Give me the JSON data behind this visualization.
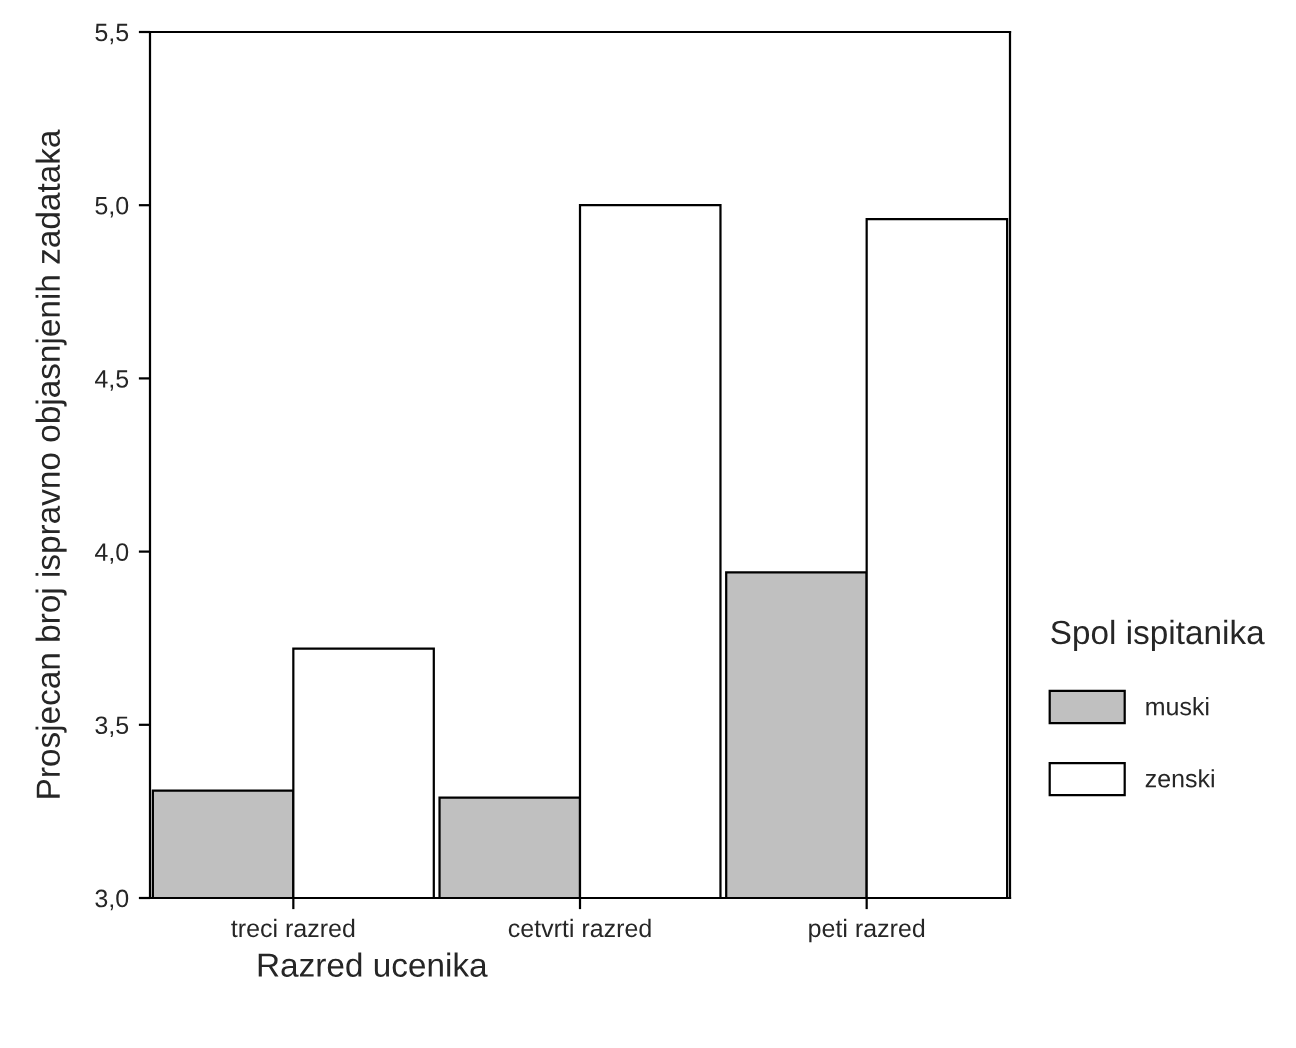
{
  "chart_data": {
    "type": "bar",
    "xlabel": "Razred ucenika",
    "ylabel": "Prosjecan broj ispravno objasnjenih zadataka",
    "legend_title": "Spol ispitanika",
    "categories": [
      "treci razred",
      "cetvrti razred",
      "peti razred"
    ],
    "series": [
      {
        "name": "muski",
        "color": "#c0c0c0",
        "values": [
          3.31,
          3.29,
          3.94
        ]
      },
      {
        "name": "zenski",
        "color": "#ffffff",
        "values": [
          3.72,
          5.0,
          4.96
        ]
      }
    ],
    "ylim": [
      3.0,
      5.5
    ],
    "yticks": [
      {
        "value": 3.0,
        "label": "3,0"
      },
      {
        "value": 3.5,
        "label": "3,5"
      },
      {
        "value": 4.0,
        "label": "4,0"
      },
      {
        "value": 4.5,
        "label": "4,5"
      },
      {
        "value": 5.0,
        "label": "5,0"
      },
      {
        "value": 5.5,
        "label": "5,5"
      }
    ],
    "grid": false,
    "legend": "right"
  }
}
